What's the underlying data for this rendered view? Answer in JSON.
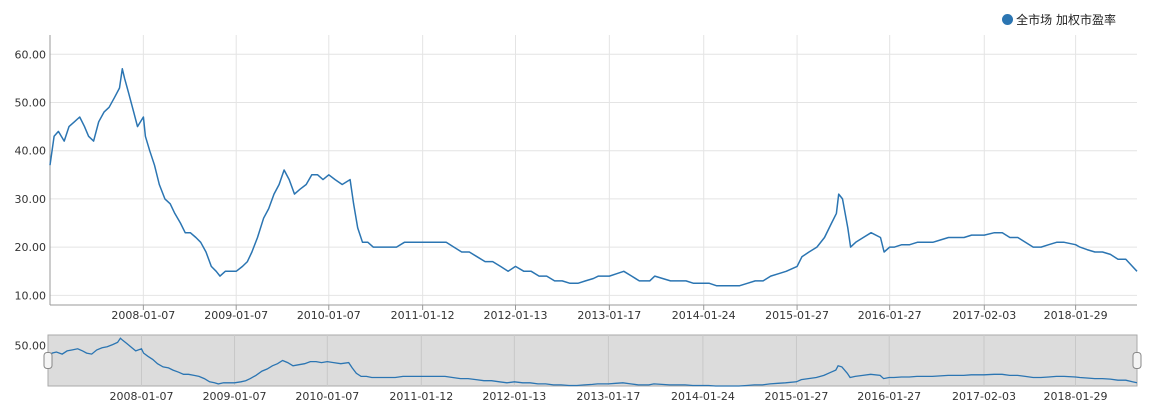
{
  "colors": {
    "series": "#2b75b2",
    "grid": "#e4e4e4",
    "axis": "#333333",
    "navigator_bg": "#dcdcdc"
  },
  "chart_data": {
    "type": "line",
    "title": "",
    "xlabel": "",
    "ylabel": "",
    "grid": true,
    "legend_position": "top-right",
    "ylim": [
      8,
      64
    ],
    "y_ticks": [
      "10.00",
      "20.00",
      "30.00",
      "40.00",
      "50.00",
      "60.00"
    ],
    "x_range": [
      "2007-01-04",
      "2018-09-28"
    ],
    "x_ticks": [
      "2008-01-07",
      "2009-01-07",
      "2010-01-07",
      "2011-01-12",
      "2012-01-13",
      "2013-01-17",
      "2014-01-24",
      "2015-01-27",
      "2016-01-27",
      "2017-02-03",
      "2018-01-29"
    ],
    "navigator": {
      "y_ticks": [
        "50.00"
      ],
      "ylim": [
        12,
        60
      ]
    },
    "series": [
      {
        "name": "全市场 加权市盈率",
        "x": [
          "2007-01-04",
          "2007-01-20",
          "2007-02-06",
          "2007-03-01",
          "2007-03-20",
          "2007-04-10",
          "2007-05-01",
          "2007-05-20",
          "2007-06-05",
          "2007-06-25",
          "2007-07-15",
          "2007-08-05",
          "2007-08-25",
          "2007-09-15",
          "2007-10-05",
          "2007-10-16",
          "2007-10-25",
          "2007-11-10",
          "2007-11-30",
          "2007-12-15",
          "2008-01-07",
          "2008-01-15",
          "2008-02-01",
          "2008-02-20",
          "2008-03-10",
          "2008-04-01",
          "2008-04-22",
          "2008-05-10",
          "2008-06-01",
          "2008-06-20",
          "2008-07-10",
          "2008-08-01",
          "2008-08-20",
          "2008-09-10",
          "2008-10-01",
          "2008-10-20",
          "2008-11-04",
          "2008-11-25",
          "2008-12-15",
          "2009-01-07",
          "2009-02-01",
          "2009-02-20",
          "2009-03-10",
          "2009-04-01",
          "2009-04-25",
          "2009-05-15",
          "2009-06-05",
          "2009-06-25",
          "2009-07-15",
          "2009-08-04",
          "2009-08-25",
          "2009-09-15",
          "2009-10-10",
          "2009-11-01",
          "2009-11-24",
          "2009-12-15",
          "2010-01-07",
          "2010-02-01",
          "2010-03-01",
          "2010-04-01",
          "2010-04-15",
          "2010-05-01",
          "2010-05-20",
          "2010-06-10",
          "2010-07-01",
          "2010-08-01",
          "2010-09-01",
          "2010-10-01",
          "2010-11-01",
          "2010-12-01",
          "2011-01-12",
          "2011-02-15",
          "2011-03-15",
          "2011-04-15",
          "2011-05-15",
          "2011-06-15",
          "2011-07-15",
          "2011-08-15",
          "2011-09-15",
          "2011-10-15",
          "2011-11-15",
          "2011-12-15",
          "2012-01-13",
          "2012-02-15",
          "2012-03-15",
          "2012-04-15",
          "2012-05-15",
          "2012-06-15",
          "2012-07-15",
          "2012-08-15",
          "2012-09-15",
          "2012-10-15",
          "2012-11-15",
          "2012-12-05",
          "2013-01-17",
          "2013-02-15",
          "2013-03-15",
          "2013-04-15",
          "2013-05-15",
          "2013-06-25",
          "2013-07-15",
          "2013-08-15",
          "2013-09-15",
          "2013-10-15",
          "2013-11-15",
          "2013-12-15",
          "2014-01-24",
          "2014-02-15",
          "2014-03-15",
          "2014-04-15",
          "2014-05-15",
          "2014-06-15",
          "2014-07-15",
          "2014-08-15",
          "2014-09-15",
          "2014-10-15",
          "2014-11-15",
          "2014-12-15",
          "2015-01-27",
          "2015-02-15",
          "2015-03-15",
          "2015-04-15",
          "2015-05-15",
          "2015-06-12",
          "2015-07-01",
          "2015-07-10",
          "2015-07-25",
          "2015-08-15",
          "2015-08-26",
          "2015-09-15",
          "2015-10-15",
          "2015-11-15",
          "2015-12-22",
          "2016-01-05",
          "2016-01-27",
          "2016-02-15",
          "2016-03-15",
          "2016-04-15",
          "2016-05-15",
          "2016-06-15",
          "2016-07-15",
          "2016-08-15",
          "2016-09-15",
          "2016-10-15",
          "2016-11-15",
          "2016-12-15",
          "2017-02-03",
          "2017-03-15",
          "2017-04-15",
          "2017-05-15",
          "2017-06-15",
          "2017-07-15",
          "2017-08-15",
          "2017-09-15",
          "2017-10-15",
          "2017-11-15",
          "2017-12-15",
          "2018-01-29",
          "2018-02-15",
          "2018-03-15",
          "2018-04-15",
          "2018-05-15",
          "2018-06-15",
          "2018-07-15",
          "2018-08-15",
          "2018-09-10",
          "2018-09-28"
        ],
        "values": [
          37,
          43,
          44,
          42,
          45,
          46,
          47,
          45,
          43,
          42,
          46,
          48,
          49,
          51,
          53,
          57,
          55,
          52,
          48,
          45,
          47,
          43,
          40,
          37,
          33,
          30,
          29,
          27,
          25,
          23,
          23,
          22,
          21,
          19,
          16,
          15,
          14,
          15,
          15,
          15,
          16,
          17,
          19,
          22,
          26,
          28,
          31,
          33,
          36,
          34,
          31,
          32,
          33,
          35,
          35,
          34,
          35,
          34,
          33,
          34,
          29,
          24,
          21,
          21,
          20,
          20,
          20,
          20,
          21,
          21,
          21,
          21,
          21,
          21,
          20,
          19,
          19,
          18,
          17,
          17,
          16,
          15,
          16,
          15,
          15,
          14,
          14,
          13,
          13,
          12.5,
          12.5,
          13,
          13.5,
          14,
          14,
          14.5,
          15,
          14,
          13,
          13,
          14,
          13.5,
          13,
          13,
          13,
          12.5,
          12.5,
          12.5,
          12,
          12,
          12,
          12,
          12.5,
          13,
          13,
          14,
          14.5,
          15,
          16,
          18,
          19,
          20,
          22,
          25,
          27,
          31,
          30,
          24,
          20,
          21,
          22,
          23,
          22,
          19,
          20,
          20,
          20.5,
          20.5,
          21,
          21,
          21,
          21.5,
          22,
          22,
          22,
          22.5,
          22.5,
          23,
          23,
          22,
          22,
          21,
          20,
          20,
          20.5,
          21,
          21,
          20.5,
          20,
          19.5,
          19,
          19,
          18.5,
          17.5,
          17.5,
          16,
          15
        ]
      }
    ]
  }
}
